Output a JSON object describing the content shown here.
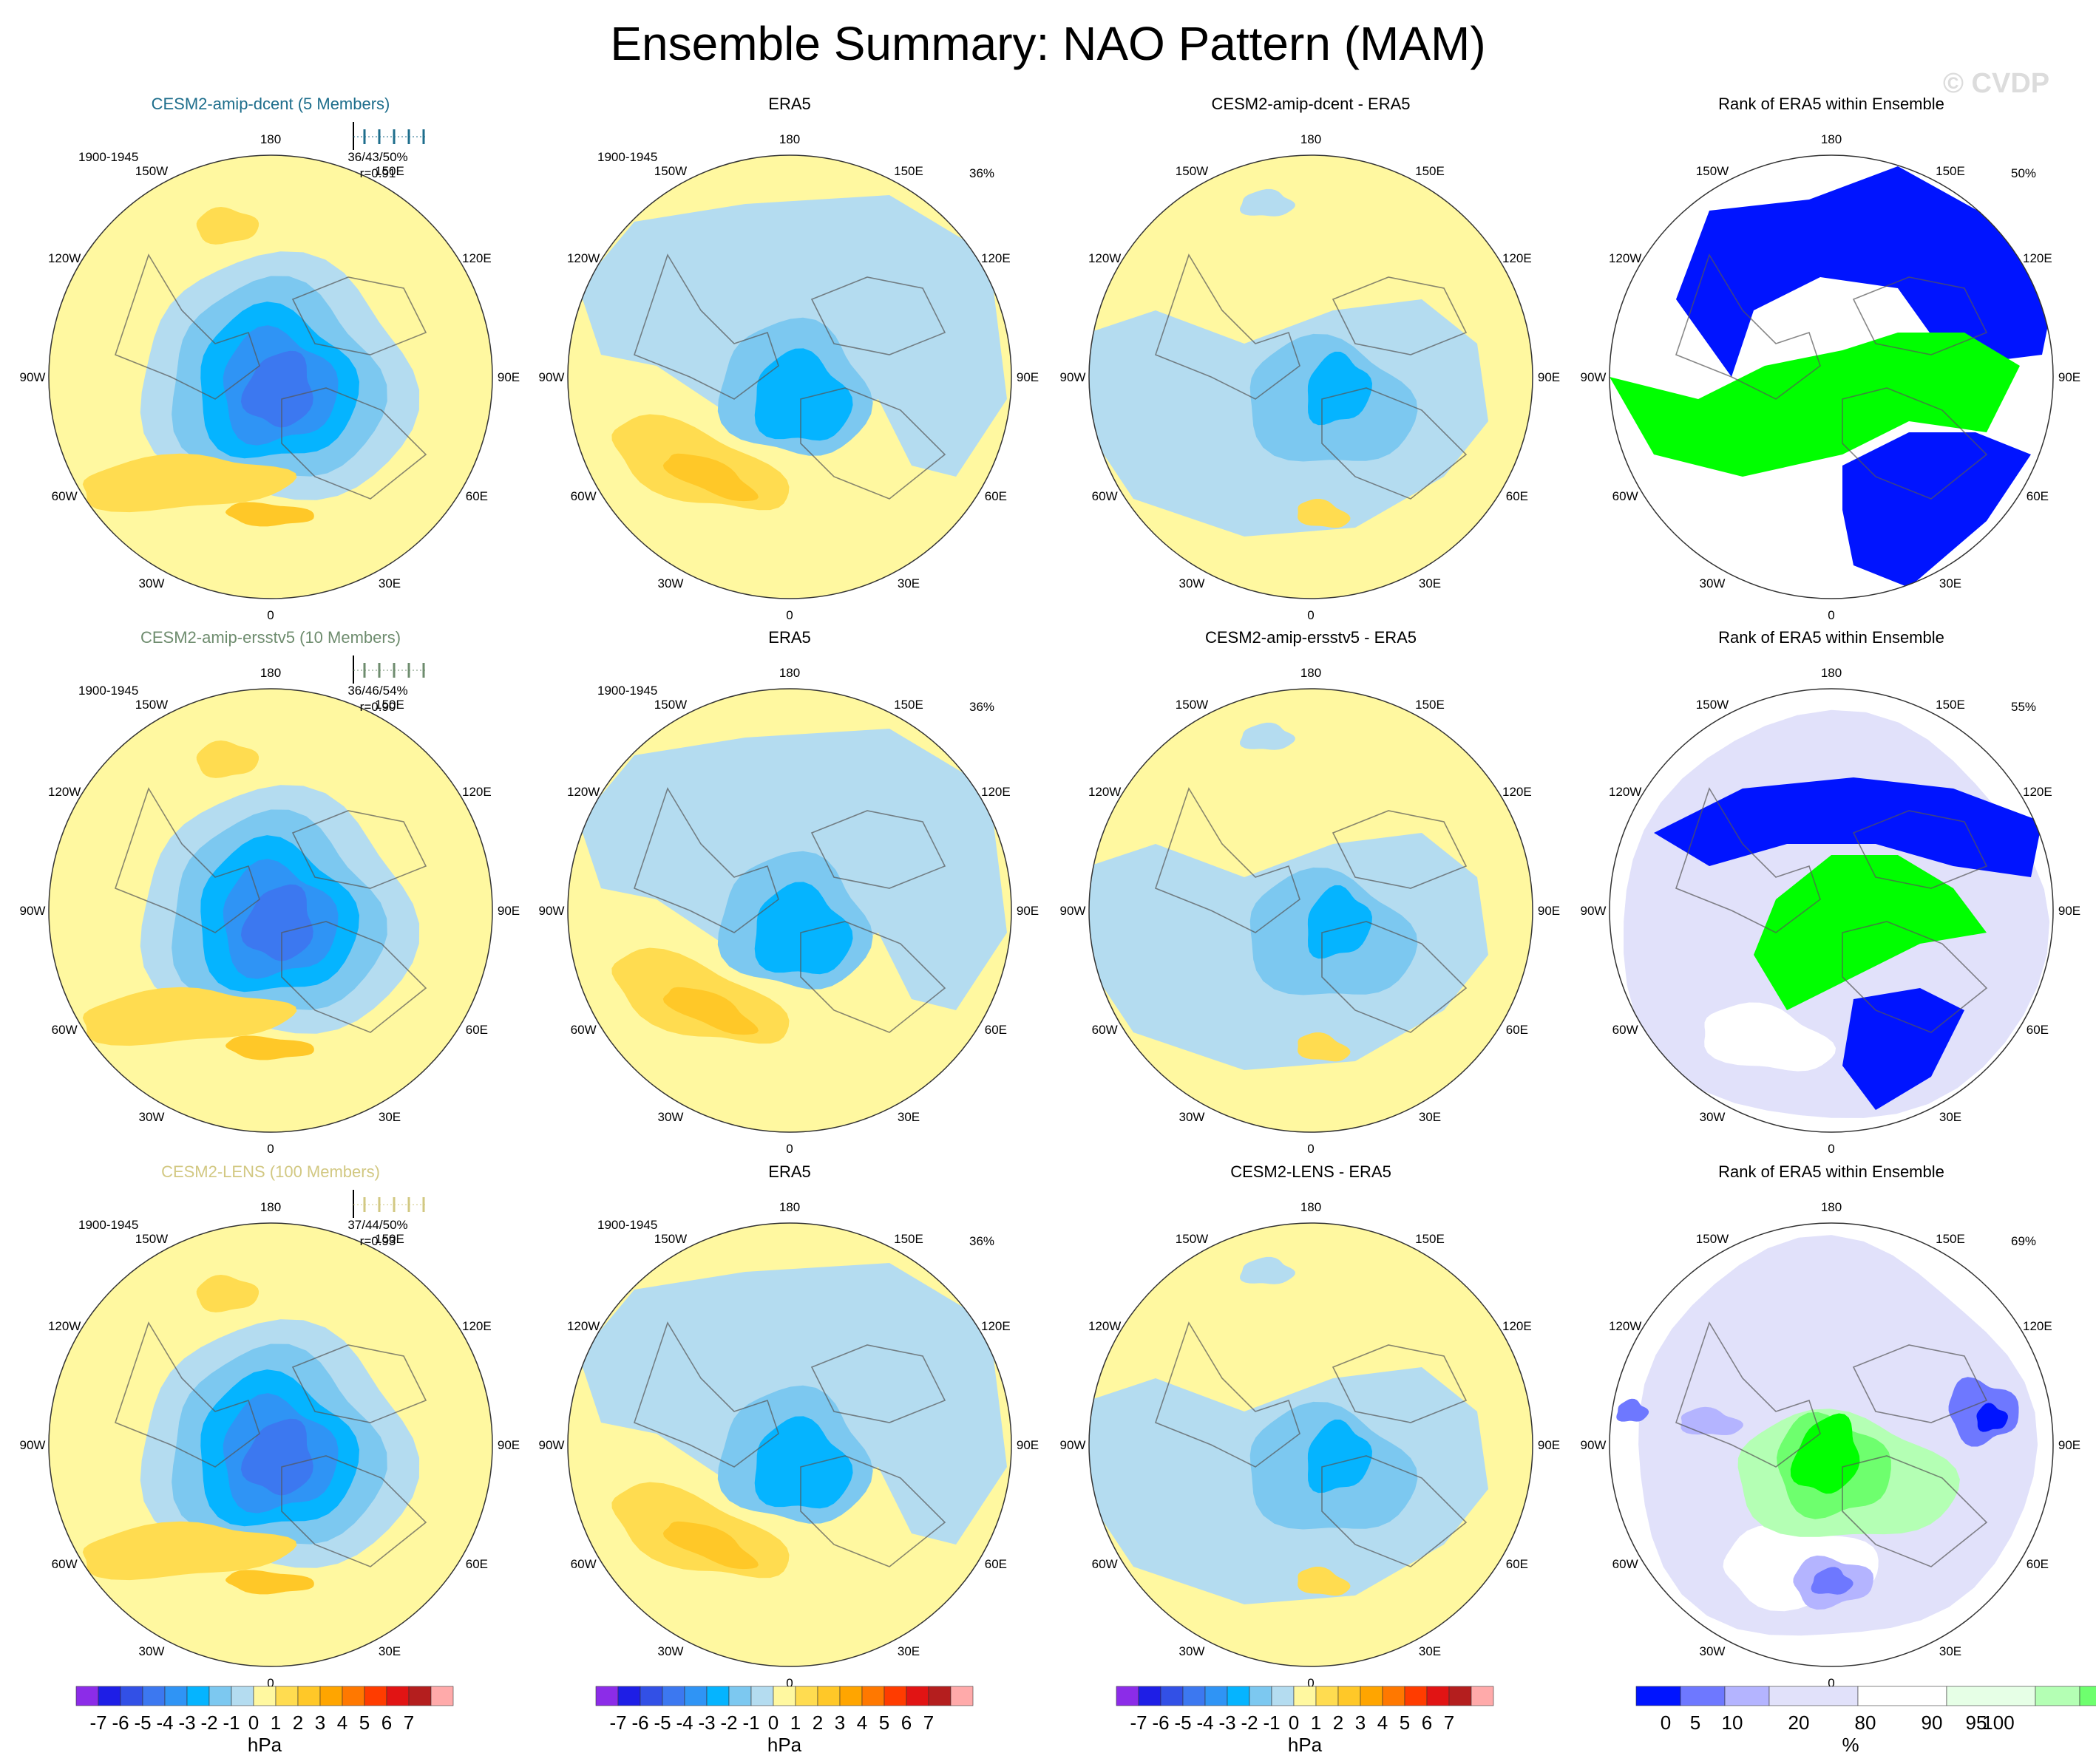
{
  "title": "Ensemble Summary: NAO Pattern (MAM)",
  "watermark": "© CVDP",
  "colors": {
    "hpa": [
      "#8c2ce8",
      "#1e1ee6",
      "#3250e6",
      "#3c78f0",
      "#2f94f5",
      "#05b4ff",
      "#7cc8f0",
      "#b4dcf0",
      "#fff8a0",
      "#ffdc50",
      "#ffc828",
      "#ffa500",
      "#ff7800",
      "#ff3c00",
      "#e11414",
      "#b41e1e",
      "#ffaaaa"
    ],
    "rank": [
      "#0014ff",
      "#6e78ff",
      "#b4b4ff",
      "#e1e1fa",
      "#ffffff",
      "#e6ffe6",
      "#b4ffb4",
      "#6eff6e",
      "#00ff00"
    ],
    "mountain": "#ffffff",
    "rows": [
      "#1e6e8c",
      "#6e8c6e",
      "#d2c882"
    ]
  },
  "lon_labels": [
    "180",
    "150E",
    "120E",
    "90E",
    "60E",
    "30E",
    "0",
    "30W",
    "60W",
    "90W",
    "120W",
    "150W"
  ],
  "cells": {
    "r0c0": {
      "title": "CESM2-amip-dcent (5 Members)",
      "period": "1900-1945",
      "stats": "36/43/50%",
      "r": "r=0.91"
    },
    "r0c1": {
      "title": "ERA5",
      "period": "1900-1945",
      "pct": "36%"
    },
    "r0c2": {
      "title": "CESM2-amip-dcent - ERA5"
    },
    "r0c3": {
      "title": "Rank of ERA5 within Ensemble",
      "pct": "50%"
    },
    "r1c0": {
      "title": "CESM2-amip-ersstv5 (10 Members)",
      "period": "1900-1945",
      "stats": "36/46/54%",
      "r": "r=0.90"
    },
    "r1c1": {
      "title": "ERA5",
      "period": "1900-1945",
      "pct": "36%"
    },
    "r1c2": {
      "title": "CESM2-amip-ersstv5 - ERA5"
    },
    "r1c3": {
      "title": "Rank of ERA5 within Ensemble",
      "pct": "55%"
    },
    "r2c0": {
      "title": "CESM2-LENS (100 Members)",
      "period": "1900-1945",
      "stats": "37/44/50%",
      "r": "r=0.93"
    },
    "r2c1": {
      "title": "ERA5",
      "period": "1900-1945",
      "pct": "36%"
    },
    "r2c2": {
      "title": "CESM2-LENS - ERA5"
    },
    "r2c3": {
      "title": "Rank of ERA5 within Ensemble",
      "pct": "69%"
    }
  },
  "colorbars": {
    "hpa": {
      "ticks": [
        "-7",
        "-6",
        "-5",
        "-4",
        "-3",
        "-2",
        "-1",
        "0",
        "1",
        "2",
        "3",
        "4",
        "5",
        "6",
        "7"
      ],
      "unit": "hPa"
    },
    "rank": {
      "ticks": [
        "0",
        "5",
        "10",
        "20",
        "80",
        "90",
        "95",
        "100"
      ],
      "unit": "%"
    }
  },
  "chart_data": {
    "type": "heatmap",
    "title": "Ensemble Summary: NAO Pattern (MAM)",
    "projection": "polar stereographic, Northern Hemisphere",
    "panels": [
      {
        "row": 0,
        "col": 0,
        "title": "CESM2-amip-dcent (5 Members)",
        "period": "1900-1945",
        "pct_variance_min_mean_max": [
          36,
          43,
          50
        ],
        "pattern_correlation": 0.91,
        "units": "hPa"
      },
      {
        "row": 0,
        "col": 1,
        "title": "ERA5",
        "period": "1900-1945",
        "pct_variance": 36,
        "units": "hPa"
      },
      {
        "row": 0,
        "col": 2,
        "title": "CESM2-amip-dcent - ERA5",
        "units": "hPa"
      },
      {
        "row": 0,
        "col": 3,
        "title": "Rank of ERA5 within Ensemble",
        "pct": 50,
        "units": "%"
      },
      {
        "row": 1,
        "col": 0,
        "title": "CESM2-amip-ersstv5 (10 Members)",
        "period": "1900-1945",
        "pct_variance_min_mean_max": [
          36,
          46,
          54
        ],
        "pattern_correlation": 0.9,
        "units": "hPa"
      },
      {
        "row": 1,
        "col": 1,
        "title": "ERA5",
        "period": "1900-1945",
        "pct_variance": 36,
        "units": "hPa"
      },
      {
        "row": 1,
        "col": 2,
        "title": "CESM2-amip-ersstv5 - ERA5",
        "units": "hPa"
      },
      {
        "row": 1,
        "col": 3,
        "title": "Rank of ERA5 within Ensemble",
        "pct": 55,
        "units": "%"
      },
      {
        "row": 2,
        "col": 0,
        "title": "CESM2-LENS (100 Members)",
        "period": "1900-1945",
        "pct_variance_min_mean_max": [
          37,
          44,
          50
        ],
        "pattern_correlation": 0.93,
        "units": "hPa"
      },
      {
        "row": 2,
        "col": 1,
        "title": "ERA5",
        "period": "1900-1945",
        "pct_variance": 36,
        "units": "hPa"
      },
      {
        "row": 2,
        "col": 2,
        "title": "CESM2-LENS - ERA5",
        "units": "hPa"
      },
      {
        "row": 2,
        "col": 3,
        "title": "Rank of ERA5 within Ensemble",
        "pct": 69,
        "units": "%"
      }
    ],
    "hpa_levels": [
      -7,
      -6,
      -5,
      -4,
      -3,
      -2,
      -1,
      0,
      1,
      2,
      3,
      4,
      5,
      6,
      7
    ],
    "rank_levels": [
      0,
      5,
      10,
      20,
      80,
      90,
      95,
      100
    ]
  }
}
